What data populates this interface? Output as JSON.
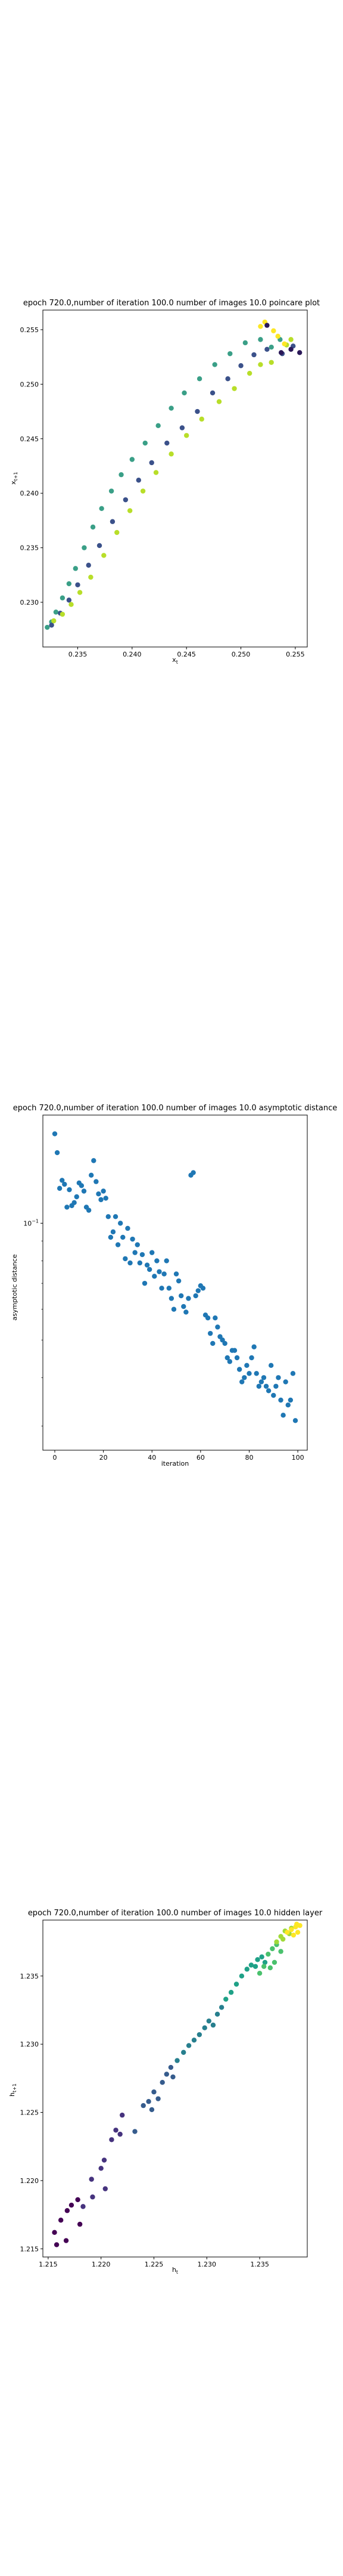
{
  "chart_data": [
    {
      "type": "scatter",
      "title": "epoch 720.0,number of iteration 100.0 number of images 10.0 poincare plot",
      "xlabel": "x_t",
      "ylabel": "x_{t+1}",
      "xlim": [
        0.2318,
        0.2561
      ],
      "ylim": [
        0.2259,
        0.2568
      ],
      "xticks": [
        "0.235",
        "0.240",
        "0.245",
        "0.250",
        "0.255"
      ],
      "yticks": [
        "0.230",
        "0.235",
        "0.240",
        "0.245",
        "0.250",
        "0.255"
      ],
      "colormap": "viridis",
      "grid": false,
      "series": [
        {
          "color": "#3a9f87",
          "points": [
            [
              0.2322,
              0.2277
            ],
            [
              0.2326,
              0.2282
            ],
            [
              0.233,
              0.2291
            ],
            [
              0.2336,
              0.2304
            ],
            [
              0.2342,
              0.2317
            ],
            [
              0.2348,
              0.2331
            ],
            [
              0.2356,
              0.235
            ],
            [
              0.2364,
              0.2369
            ],
            [
              0.2372,
              0.2386
            ],
            [
              0.2381,
              0.2402
            ],
            [
              0.239,
              0.2417
            ],
            [
              0.24,
              0.2431
            ],
            [
              0.2412,
              0.2446
            ],
            [
              0.2424,
              0.2462
            ],
            [
              0.2436,
              0.2478
            ],
            [
              0.2448,
              0.2492
            ],
            [
              0.2462,
              0.2505
            ],
            [
              0.2476,
              0.2518
            ],
            [
              0.249,
              0.2528
            ],
            [
              0.2504,
              0.2538
            ],
            [
              0.2518,
              0.2541
            ],
            [
              0.2528,
              0.2534
            ],
            [
              0.2536,
              0.2541
            ]
          ]
        },
        {
          "color": "#3b518a",
          "points": [
            [
              0.2326,
              0.2279
            ],
            [
              0.2334,
              0.229
            ],
            [
              0.2342,
              0.2302
            ],
            [
              0.235,
              0.2316
            ],
            [
              0.236,
              0.2334
            ],
            [
              0.237,
              0.2352
            ],
            [
              0.2382,
              0.2374
            ],
            [
              0.2394,
              0.2394
            ],
            [
              0.2406,
              0.2412
            ],
            [
              0.2418,
              0.2428
            ],
            [
              0.2432,
              0.2446
            ],
            [
              0.2446,
              0.246
            ],
            [
              0.246,
              0.2475
            ],
            [
              0.2474,
              0.2492
            ],
            [
              0.2488,
              0.2505
            ],
            [
              0.25,
              0.2517
            ],
            [
              0.2512,
              0.2527
            ],
            [
              0.2524,
              0.2532
            ],
            [
              0.2538,
              0.2528
            ],
            [
              0.2548,
              0.2535
            ]
          ]
        },
        {
          "color": "#b8de29",
          "points": [
            [
              0.2328,
              0.2283
            ],
            [
              0.2336,
              0.2289
            ],
            [
              0.2344,
              0.2298
            ],
            [
              0.2352,
              0.2309
            ],
            [
              0.2362,
              0.2323
            ],
            [
              0.2374,
              0.2343
            ],
            [
              0.2386,
              0.2364
            ],
            [
              0.2398,
              0.2384
            ],
            [
              0.241,
              0.2402
            ],
            [
              0.2422,
              0.2419
            ],
            [
              0.2436,
              0.2436
            ],
            [
              0.245,
              0.2453
            ],
            [
              0.2464,
              0.2468
            ],
            [
              0.248,
              0.2484
            ],
            [
              0.2494,
              0.2496
            ],
            [
              0.2508,
              0.251
            ],
            [
              0.2518,
              0.2518
            ],
            [
              0.2528,
              0.252
            ],
            [
              0.2542,
              0.2536
            ],
            [
              0.2546,
              0.2541
            ]
          ]
        },
        {
          "color": "#fde725",
          "points": [
            [
              0.2518,
              0.2553
            ],
            [
              0.2522,
              0.2557
            ],
            [
              0.253,
              0.2549
            ],
            [
              0.2534,
              0.2544
            ],
            [
              0.254,
              0.2537
            ]
          ]
        },
        {
          "color": "#2a1858",
          "points": [
            [
              0.2524,
              0.2554
            ],
            [
              0.2537,
              0.2529
            ],
            [
              0.2546,
              0.2532
            ],
            [
              0.2554,
              0.2529
            ]
          ]
        }
      ]
    },
    {
      "type": "scatter",
      "title": "epoch 720.0,number of iteration 100.0  number of images 10.0 asymptotic distance",
      "xlabel": "iteration",
      "ylabel": "asymptotic distance",
      "xlim": [
        -4.9,
        103.9
      ],
      "log_scale_y": true,
      "ylim": [
        0.026,
        0.19
      ],
      "xticks": [
        "0",
        "20",
        "40",
        "60",
        "80",
        "100"
      ],
      "yticks": [
        "10^-1"
      ],
      "color": "#1f77b4",
      "grid": false,
      "series": [
        {
          "values": [
            0.17,
            0.152,
            0.123,
            0.129,
            0.126,
            0.11,
            0.122,
            0.111,
            0.113,
            0.117,
            0.127,
            0.125,
            0.121,
            0.11,
            0.108,
            0.133,
            0.145,
            0.128,
            0.119,
            0.115,
            0.121,
            0.116,
            0.104,
            0.092,
            0.095,
            0.104,
            0.088,
            0.1,
            0.092,
            0.081,
            0.097,
            0.079,
            0.091,
            0.084,
            0.088,
            0.079,
            0.083,
            0.07,
            0.078,
            0.076,
            0.084,
            0.073,
            0.08,
            0.075,
            0.068,
            0.074,
            0.08,
            0.068,
            0.064,
            0.06,
            0.074,
            0.071,
            0.065,
            0.061,
            0.059,
            0.064,
            0.133,
            0.135,
            0.065,
            0.067,
            0.069,
            0.068,
            0.058,
            0.057,
            0.052,
            0.049,
            0.057,
            0.054,
            0.051,
            0.05,
            0.049,
            0.045,
            0.044,
            0.047,
            0.047,
            0.045,
            0.042,
            0.039,
            0.04,
            0.043,
            0.041,
            0.045,
            0.048,
            0.041,
            0.038,
            0.039,
            0.04,
            0.038,
            0.037,
            0.043,
            0.036,
            0.038,
            0.04,
            0.035,
            0.032,
            0.039,
            0.034,
            0.035,
            0.041,
            0.031
          ]
        }
      ]
    },
    {
      "type": "scatter",
      "title": "epoch 720.0,number of iteration 100.0  number of images 10.0 hidden layer",
      "xlabel": "h_t",
      "ylabel": "h_{t+1}",
      "xlim": [
        1.2145,
        1.2395
      ],
      "ylim": [
        1.2144,
        1.2391
      ],
      "xticks": [
        "1.215",
        "1.220",
        "1.225",
        "1.230",
        "1.235"
      ],
      "yticks": [
        "1.215",
        "1.220",
        "1.225",
        "1.230",
        "1.235"
      ],
      "colormap": "viridis",
      "grid": false,
      "series": [
        {
          "color": "#440154",
          "points": [
            [
              1.2156,
              1.2162
            ],
            [
              1.2162,
              1.2171
            ],
            [
              1.2158,
              1.2153
            ],
            [
              1.2167,
              1.2156
            ],
            [
              1.2168,
              1.2178
            ],
            [
              1.2172,
              1.2182
            ],
            [
              1.2178,
              1.2186
            ],
            [
              1.218,
              1.2168
            ]
          ]
        },
        {
          "color": "#46337e",
          "points": [
            [
              1.2183,
              1.2181
            ],
            [
              1.2192,
              1.2188
            ],
            [
              1.2191,
              1.2201
            ],
            [
              1.22,
              1.2209
            ],
            [
              1.2203,
              1.2215
            ],
            [
              1.2204,
              1.2194
            ],
            [
              1.221,
              1.223
            ],
            [
              1.2214,
              1.2237
            ],
            [
              1.2218,
              1.2234
            ],
            [
              1.222,
              1.2248
            ]
          ]
        },
        {
          "color": "#365c8d",
          "points": [
            [
              1.2232,
              1.2236
            ],
            [
              1.224,
              1.2255
            ],
            [
              1.2245,
              1.2258
            ],
            [
              1.2248,
              1.2252
            ],
            [
              1.225,
              1.2265
            ],
            [
              1.2254,
              1.226
            ],
            [
              1.2258,
              1.2272
            ],
            [
              1.2262,
              1.2278
            ],
            [
              1.2266,
              1.2283
            ],
            [
              1.2268,
              1.2276
            ]
          ]
        },
        {
          "color": "#277f8e",
          "points": [
            [
              1.2272,
              1.2288
            ],
            [
              1.2278,
              1.2294
            ],
            [
              1.2283,
              1.2299
            ],
            [
              1.2288,
              1.2303
            ],
            [
              1.2293,
              1.2307
            ],
            [
              1.2298,
              1.2312
            ],
            [
              1.2302,
              1.2317
            ],
            [
              1.2306,
              1.2314
            ],
            [
              1.231,
              1.2322
            ],
            [
              1.2314,
              1.2327
            ]
          ]
        },
        {
          "color": "#1fa187",
          "points": [
            [
              1.2318,
              1.2333
            ],
            [
              1.2323,
              1.2338
            ],
            [
              1.2328,
              1.2344
            ],
            [
              1.2333,
              1.235
            ],
            [
              1.2338,
              1.2355
            ],
            [
              1.2342,
              1.2358
            ],
            [
              1.2346,
              1.2357
            ],
            [
              1.2348,
              1.2362
            ],
            [
              1.2352,
              1.2364
            ],
            [
              1.2355,
              1.236
            ]
          ]
        },
        {
          "color": "#4ac16d",
          "points": [
            [
              1.235,
              1.2352
            ],
            [
              1.2354,
              1.2357
            ],
            [
              1.2358,
              1.2366
            ],
            [
              1.2362,
              1.237
            ],
            [
              1.2366,
              1.2373
            ],
            [
              1.237,
              1.2368
            ],
            [
              1.2364,
              1.236
            ],
            [
              1.236,
              1.2356
            ]
          ]
        },
        {
          "color": "#a0da39",
          "points": [
            [
              1.2366,
              1.2375
            ],
            [
              1.237,
              1.2379
            ],
            [
              1.2374,
              1.2383
            ],
            [
              1.2378,
              1.2381
            ],
            [
              1.238,
              1.2385
            ],
            [
              1.2372,
              1.2377
            ]
          ]
        },
        {
          "color": "#fde725",
          "points": [
            [
              1.2376,
              1.2382
            ],
            [
              1.238,
              1.2384
            ],
            [
              1.2384,
              1.2386
            ],
            [
              1.2386,
              1.2382
            ],
            [
              1.2388,
              1.2387
            ],
            [
              1.2382,
              1.238
            ],
            [
              1.2385,
              1.2388
            ]
          ]
        }
      ]
    }
  ]
}
